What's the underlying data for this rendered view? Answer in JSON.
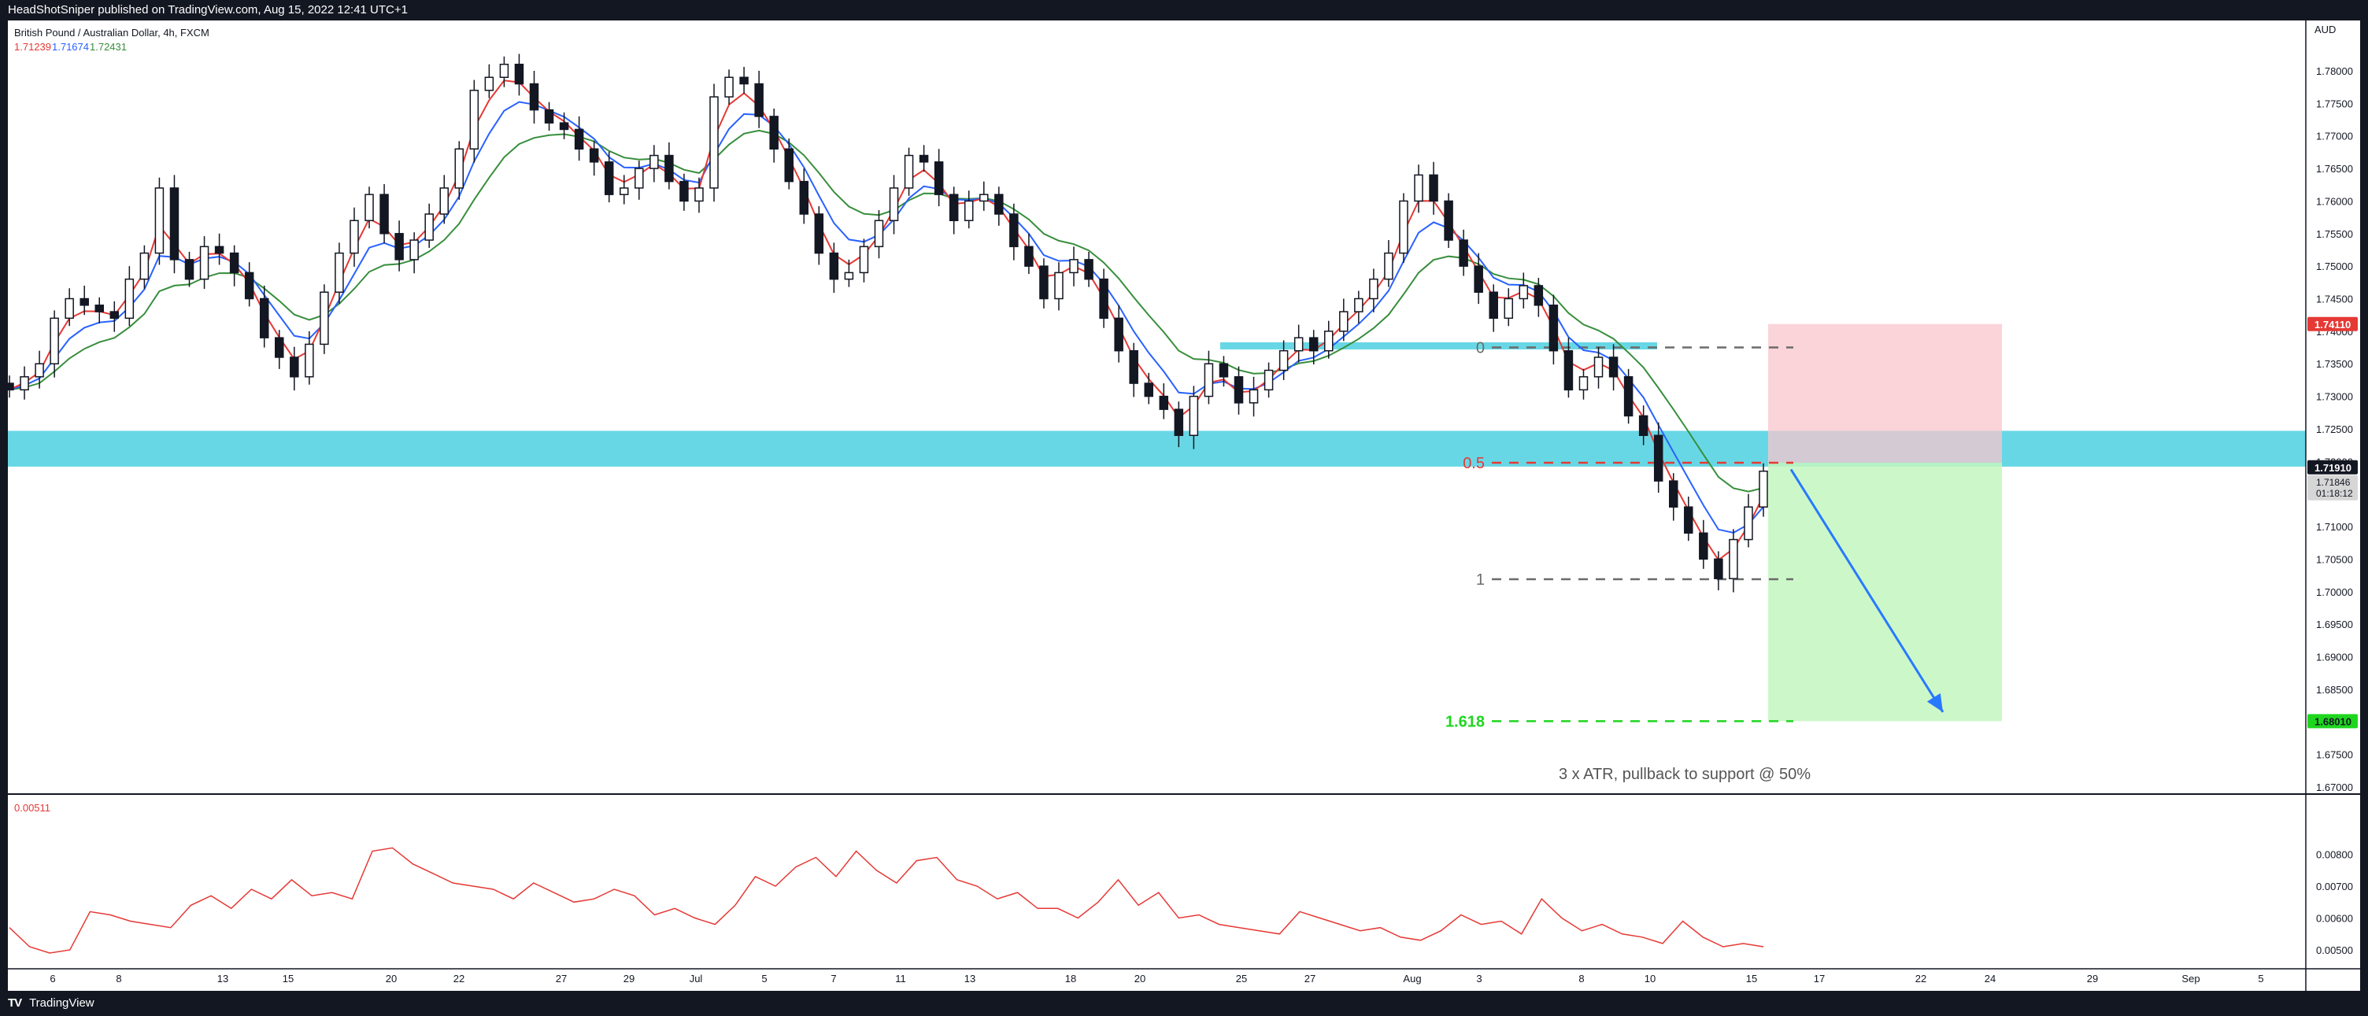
{
  "header": {
    "published": "HeadShotSniper published on TradingView.com, Aug 15, 2022 12:41 UTC+1"
  },
  "footer": {
    "logo_glyph": "TV",
    "brand": "TradingView"
  },
  "chart_data": {
    "type": "candlestick",
    "symbol": "British Pound / Australian Dollar, 4h, FXCM",
    "ma_values": [
      "1.71239",
      "1.71674",
      "1.72431"
    ],
    "currency": "AUD",
    "y_range": [
      1.665,
      1.788
    ],
    "y_ticks": [
      "1.78000",
      "1.77500",
      "1.77000",
      "1.76500",
      "1.76000",
      "1.75500",
      "1.75000",
      "1.74500",
      "1.74000",
      "1.73500",
      "1.73000",
      "1.72500",
      "1.72000",
      "1.71500",
      "1.71000",
      "1.70500",
      "1.70000",
      "1.69500",
      "1.69000",
      "1.68500",
      "1.68000",
      "1.67500",
      "1.67000"
    ],
    "x_ticks": [
      "6",
      "8",
      "13",
      "15",
      "20",
      "22",
      "27",
      "29",
      "Jul",
      "5",
      "7",
      "11",
      "13",
      "18",
      "20",
      "25",
      "27",
      "Aug",
      "3",
      "8",
      "10",
      "15",
      "17",
      "22",
      "24",
      "29",
      "Sep",
      "5"
    ],
    "price_labels": {
      "stop": "1.74110",
      "current": "1.71910",
      "last": "1.71846",
      "countdown": "01:18:12",
      "target": "1.68010"
    },
    "price_close_path": [
      1.731,
      1.733,
      1.735,
      1.742,
      1.745,
      1.744,
      1.743,
      1.742,
      1.748,
      1.752,
      1.762,
      1.751,
      1.748,
      1.753,
      1.752,
      1.749,
      1.745,
      1.739,
      1.736,
      1.733,
      1.738,
      1.746,
      1.752,
      1.757,
      1.761,
      1.755,
      1.751,
      1.754,
      1.758,
      1.762,
      1.768,
      1.777,
      1.779,
      1.781,
      1.778,
      1.774,
      1.772,
      1.771,
      1.768,
      1.766,
      1.761,
      1.762,
      1.765,
      1.767,
      1.763,
      1.76,
      1.762,
      1.776,
      1.779,
      1.778,
      1.773,
      1.768,
      1.763,
      1.758,
      1.752,
      1.748,
      1.749,
      1.753,
      1.757,
      1.762,
      1.767,
      1.766,
      1.761,
      1.757,
      1.76,
      1.761,
      1.758,
      1.753,
      1.75,
      1.745,
      1.749,
      1.751,
      1.748,
      1.742,
      1.737,
      1.732,
      1.73,
      1.728,
      1.724,
      1.73,
      1.735,
      1.733,
      1.729,
      1.731,
      1.734,
      1.737,
      1.739,
      1.737,
      1.74,
      1.743,
      1.745,
      1.748,
      1.752,
      1.76,
      1.764,
      1.76,
      1.754,
      1.75,
      1.746,
      1.742,
      1.745,
      1.747,
      1.744,
      1.737,
      1.731,
      1.733,
      1.736,
      1.733,
      1.727,
      1.724,
      1.717,
      1.713,
      1.709,
      1.705,
      1.702,
      1.708,
      1.713,
      1.7185
    ],
    "fib_levels": [
      {
        "label": "0",
        "value": 1.7375
      },
      {
        "label": "0.5",
        "value": 1.7198
      },
      {
        "label": "1",
        "value": 1.7019
      },
      {
        "label": "1.618",
        "value": 1.6801
      }
    ],
    "zones": {
      "support_band": [
        1.7192,
        1.7247
      ],
      "small_band": [
        1.7372,
        1.7383
      ],
      "risk_box": [
        1.7198,
        1.7411
      ],
      "reward_box": [
        1.6801,
        1.7198
      ]
    },
    "annotation": "3 x ATR, pullback to support @ 50%",
    "atr": {
      "value_label": "0.00511",
      "y_range": [
        0.0045,
        0.0091
      ],
      "y_ticks": [
        "0.00800",
        "0.00700",
        "0.00600",
        "0.00500"
      ],
      "path": [
        0.0057,
        0.0051,
        0.0049,
        0.005,
        0.0062,
        0.0061,
        0.0059,
        0.0058,
        0.0057,
        0.0064,
        0.0067,
        0.0063,
        0.0069,
        0.0066,
        0.0072,
        0.0067,
        0.0068,
        0.0066,
        0.0081,
        0.0082,
        0.0077,
        0.0074,
        0.0071,
        0.007,
        0.0069,
        0.0066,
        0.0071,
        0.0068,
        0.0065,
        0.0066,
        0.0069,
        0.0067,
        0.0061,
        0.0063,
        0.006,
        0.0058,
        0.0064,
        0.0073,
        0.007,
        0.0076,
        0.0079,
        0.0073,
        0.0081,
        0.0075,
        0.0071,
        0.0078,
        0.0079,
        0.0072,
        0.007,
        0.0066,
        0.0068,
        0.0063,
        0.0063,
        0.006,
        0.0065,
        0.0072,
        0.0064,
        0.0068,
        0.006,
        0.0061,
        0.0058,
        0.0057,
        0.0056,
        0.0055,
        0.0062,
        0.006,
        0.0058,
        0.0056,
        0.0057,
        0.0054,
        0.0053,
        0.0056,
        0.0061,
        0.0058,
        0.0059,
        0.0055,
        0.0066,
        0.006,
        0.0056,
        0.0058,
        0.0055,
        0.0054,
        0.0052,
        0.0059,
        0.0054,
        0.0051,
        0.0052,
        0.0051
      ]
    },
    "colors": {
      "ema_fast": "#e53935",
      "ema_mid": "#2962ff",
      "ema_slow": "#388e3c",
      "band": "#4dd0e1",
      "risk": "#f8c6cc",
      "reward": "#c3f7c0",
      "arrow": "#2979ff"
    }
  }
}
